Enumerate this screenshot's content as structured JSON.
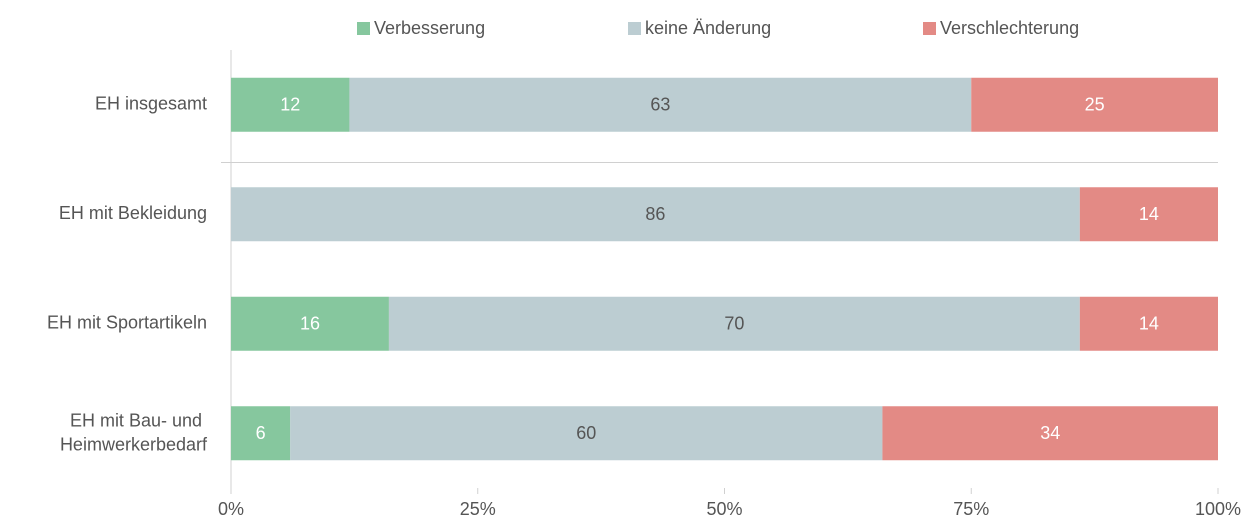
{
  "chart_data": {
    "type": "stacked-bar-horizontal",
    "categories": [
      "EH insgesamt",
      "EH mit Bekleidung",
      "EH mit Sportartikeln",
      "EH mit Bau- und Heimwerkerbedarf"
    ],
    "series": [
      {
        "name": "Verbesserung",
        "color": "#86c79e",
        "label_color": "#ffffff",
        "values": [
          12,
          null,
          16,
          6
        ]
      },
      {
        "name": "keine Änderung",
        "color": "#bccdd2",
        "label_color": "#555555",
        "values": [
          63,
          86,
          70,
          60
        ]
      },
      {
        "name": "Verschlechterung",
        "color": "#e38a85",
        "label_color": "#ffffff",
        "values": [
          25,
          14,
          14,
          34
        ]
      }
    ],
    "xlim": [
      0,
      100
    ],
    "xticks": [
      {
        "value": 0,
        "label": "0%"
      },
      {
        "value": 25,
        "label": "25%"
      },
      {
        "value": 50,
        "label": "50%"
      },
      {
        "value": 75,
        "label": "75%"
      },
      {
        "value": 100,
        "label": "100%"
      }
    ],
    "legend": "top"
  }
}
